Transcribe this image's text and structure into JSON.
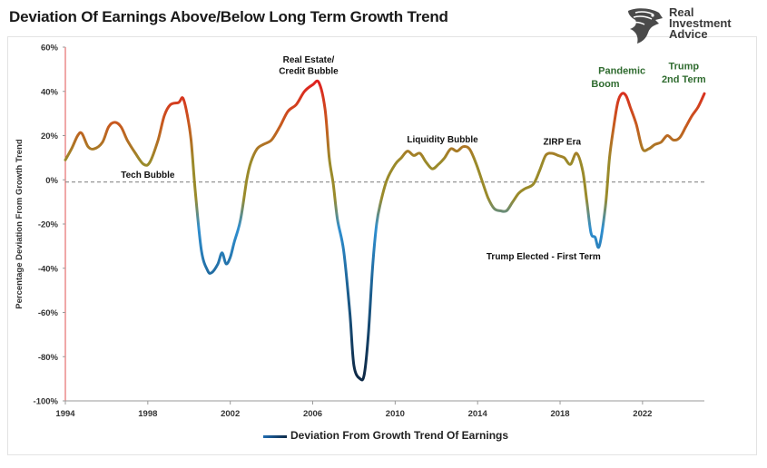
{
  "title": "Deviation Of Earnings Above/Below Long Term Growth Trend",
  "logo": {
    "lines": [
      "Real",
      "Investment",
      "Advice"
    ],
    "icon": "eagle-head-icon"
  },
  "legend": {
    "label": "Deviation From Growth Trend Of Earnings"
  },
  "colors": {
    "positive_high": "#e01f1f",
    "mid": "#9a8a2a",
    "negative": "#2f8fd0",
    "negative_deep": "#0e2a47",
    "annotation_green": "#2f6b2f"
  },
  "chart_data": {
    "type": "line",
    "title": "Deviation Of Earnings Above/Below Long Term Growth Trend",
    "xlabel": "",
    "ylabel": "Percentage Deviation From Growth Trend",
    "xlim": [
      1994,
      2025
    ],
    "ylim": [
      -100,
      60
    ],
    "x_ticks": [
      1994,
      1998,
      2002,
      2006,
      2010,
      2014,
      2018,
      2022
    ],
    "x_tick_labels": [
      "1994",
      "1998",
      "2002",
      "2006",
      "2010",
      "2014",
      "2018",
      "2022"
    ],
    "y_ticks": [
      -100,
      -80,
      -60,
      -40,
      -20,
      0,
      20,
      40,
      60
    ],
    "y_tick_labels": [
      "-100%",
      "-80%",
      "-60%",
      "-40%",
      "-20%",
      "0%",
      "20%",
      "40%",
      "60%"
    ],
    "zero_line": "dashed",
    "grid": false,
    "legend_position": "bottom",
    "series": [
      {
        "name": "Deviation From Growth Trend Of Earnings",
        "x": [
          1994.0,
          1994.3,
          1994.6,
          1994.8,
          1995.1,
          1995.4,
          1995.8,
          1996.1,
          1996.4,
          1996.7,
          1997.0,
          1997.4,
          1997.8,
          1998.1,
          1998.5,
          1998.8,
          1999.1,
          1999.5,
          1999.7,
          1999.9,
          2000.1,
          2000.3,
          2000.6,
          2000.9,
          2001.1,
          2001.4,
          2001.6,
          2001.8,
          2002.0,
          2002.2,
          2002.5,
          2002.8,
          2003.0,
          2003.3,
          2003.6,
          2004.0,
          2004.4,
          2004.8,
          2005.2,
          2005.6,
          2006.0,
          2006.3,
          2006.6,
          2006.8,
          2007.0,
          2007.2,
          2007.5,
          2007.8,
          2008.0,
          2008.3,
          2008.5,
          2008.7,
          2008.9,
          2009.1,
          2009.3,
          2009.6,
          2010.0,
          2010.3,
          2010.6,
          2010.9,
          2011.2,
          2011.5,
          2011.8,
          2012.1,
          2012.4,
          2012.7,
          2013.0,
          2013.3,
          2013.6,
          2013.9,
          2014.2,
          2014.5,
          2014.8,
          2015.1,
          2015.4,
          2015.7,
          2016.0,
          2016.3,
          2016.7,
          2017.0,
          2017.3,
          2017.6,
          2017.9,
          2018.2,
          2018.5,
          2018.8,
          2019.1,
          2019.3,
          2019.5,
          2019.7,
          2019.9,
          2020.2,
          2020.4,
          2020.6,
          2020.8,
          2021.0,
          2021.2,
          2021.4,
          2021.7,
          2022.0,
          2022.3,
          2022.6,
          2022.9,
          2023.2,
          2023.5,
          2023.8,
          2024.1,
          2024.4,
          2024.7,
          2025.0
        ],
        "values": [
          9,
          14,
          20,
          21,
          15,
          14,
          17,
          24,
          26,
          24,
          18,
          12,
          7,
          8,
          18,
          29,
          34,
          35,
          37,
          30,
          18,
          -5,
          -32,
          -41,
          -42,
          -38,
          -33,
          -38,
          -35,
          -28,
          -18,
          0,
          8,
          14,
          16,
          18,
          24,
          31,
          34,
          40,
          43,
          44,
          32,
          10,
          -2,
          -18,
          -32,
          -60,
          -84,
          -90,
          -88,
          -70,
          -40,
          -20,
          -10,
          0,
          7,
          10,
          13,
          11,
          12,
          8,
          5,
          7,
          10,
          14,
          13,
          15,
          14,
          8,
          0,
          -8,
          -13,
          -14,
          -14,
          -10,
          -6,
          -4,
          -2,
          4,
          11,
          12,
          11,
          10,
          7,
          12,
          4,
          -10,
          -24,
          -26,
          -30,
          -12,
          10,
          24,
          35,
          39,
          38,
          33,
          25,
          14,
          14,
          16,
          17,
          20,
          18,
          19,
          24,
          29,
          33,
          39
        ]
      }
    ],
    "annotations": [
      {
        "text": "Tech Bubble",
        "x": 1998,
        "y": 1
      },
      {
        "text": "Real Estate/",
        "x": 2005.8,
        "y": 53
      },
      {
        "text": "Credit Bubble",
        "x": 2005.8,
        "y": 48
      },
      {
        "text": "Liquidity Bubble",
        "x": 2012.3,
        "y": 17
      },
      {
        "text": "ZIRP Era",
        "x": 2018.1,
        "y": 16
      },
      {
        "text": "Trump Elected - First Term",
        "x": 2017.2,
        "y": -36
      },
      {
        "text": "Pandemic",
        "x": 2021.0,
        "y": 48,
        "color": "green"
      },
      {
        "text": "Boom",
        "x": 2020.2,
        "y": 42,
        "color": "green"
      },
      {
        "text": "Trump",
        "x": 2024.0,
        "y": 50,
        "color": "green"
      },
      {
        "text": "2nd Term",
        "x": 2024.0,
        "y": 44,
        "color": "green"
      }
    ]
  }
}
